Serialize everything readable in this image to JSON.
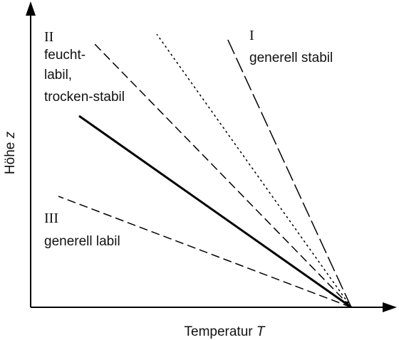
{
  "axes": {
    "y_label": {
      "text": "Höhe",
      "variable": "z"
    },
    "x_label": {
      "text": "Temperatur",
      "variable": "T"
    }
  },
  "regions": [
    {
      "numeral": "I",
      "lines": [
        "generell stabil"
      ]
    },
    {
      "numeral": "II",
      "lines": [
        "feucht-",
        "labil,",
        "trocken-stabil"
      ]
    },
    {
      "numeral": "III",
      "lines": [
        "generell labil"
      ]
    }
  ]
}
